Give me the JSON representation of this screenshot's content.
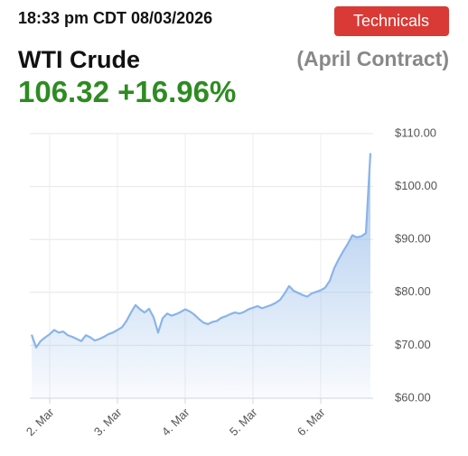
{
  "header": {
    "timestamp": "18:33 pm CDT 08/03/2026",
    "button": "Technicals",
    "instrument": "WTI Crude",
    "contract": "(April Contract)",
    "price": "106.32",
    "change": "+16.96%"
  },
  "chart_data": {
    "type": "area",
    "color": "#8ab4e8",
    "grid": true,
    "categories": [
      null,
      null,
      null,
      null,
      "2. Mar",
      null,
      null,
      null,
      null,
      null,
      null,
      null,
      null,
      null,
      null,
      null,
      null,
      null,
      null,
      "3. Mar",
      null,
      null,
      null,
      null,
      null,
      null,
      null,
      null,
      null,
      null,
      null,
      null,
      null,
      null,
      "4. Mar",
      null,
      null,
      null,
      null,
      null,
      null,
      null,
      null,
      null,
      null,
      null,
      null,
      null,
      null,
      "5. Mar",
      null,
      null,
      null,
      null,
      null,
      null,
      null,
      null,
      null,
      null,
      null,
      null,
      null,
      null,
      "6. Mar",
      null,
      null,
      null,
      null,
      null,
      null,
      null,
      null,
      null,
      null,
      null
    ],
    "values": [
      72,
      69.6,
      70.8,
      71.5,
      72.1,
      72.9,
      72.4,
      72.6,
      71.9,
      71.6,
      71.2,
      70.8,
      71.9,
      71.5,
      70.9,
      71.2,
      71.6,
      72.1,
      72.4,
      72.9,
      73.4,
      74.6,
      76.2,
      77.6,
      76.8,
      76.2,
      76.9,
      75.3,
      72.4,
      75.1,
      76.0,
      75.6,
      75.9,
      76.3,
      76.8,
      76.4,
      75.8,
      75.0,
      74.3,
      74.0,
      74.4,
      74.6,
      75.2,
      75.5,
      75.9,
      76.2,
      76.0,
      76.3,
      76.8,
      77.1,
      77.4,
      77.0,
      77.3,
      77.6,
      78.0,
      78.6,
      79.8,
      81.2,
      80.3,
      79.9,
      79.5,
      79.2,
      79.8,
      80.1,
      80.4,
      80.9,
      82.2,
      84.6,
      86.3,
      87.8,
      89.2,
      90.8,
      90.4,
      90.6,
      91.2,
      106.32
    ],
    "ylim": [
      60,
      110
    ],
    "yticks": [
      {
        "value": 60,
        "label": "$60.00"
      },
      {
        "value": 70,
        "label": "$70.00"
      },
      {
        "value": 80,
        "label": "$80.00"
      },
      {
        "value": 90,
        "label": "$90.00"
      },
      {
        "value": 100,
        "label": "$100.00"
      },
      {
        "value": 110,
        "label": "$110.00"
      }
    ]
  }
}
